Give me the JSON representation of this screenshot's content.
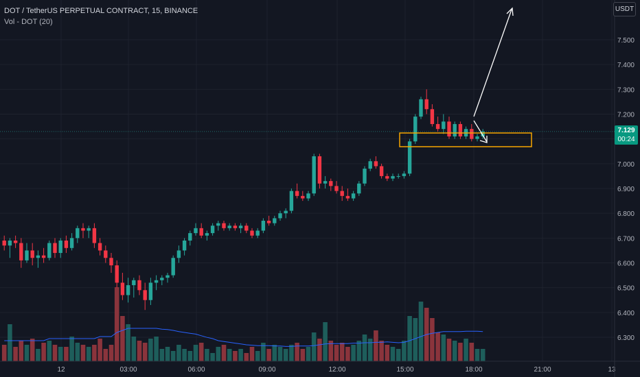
{
  "legend": {
    "title": "DOT / TetherUS PERPETUAL CONTRACT, 15, BINANCE",
    "volume_label": "Vol - DOT (20)"
  },
  "toolbar": {
    "currency": "USDT"
  },
  "last_price": {
    "value": "7.129",
    "countdown": "00:24",
    "color": "#089981"
  },
  "colors": {
    "up": "#26a69a",
    "down": "#f23645",
    "up_volume": "#1e5e5b",
    "down_volume": "#8a343c",
    "ma": "#2962ff",
    "annotation_box": "#f7a600",
    "arrow": "#ffffff"
  },
  "chart_data": {
    "type": "candlestick",
    "y_ticks": [
      "7.500",
      "7.400",
      "7.300",
      "7.200",
      "7.100",
      "7.000",
      "6.900",
      "6.800",
      "6.700",
      "6.600",
      "6.500",
      "6.400",
      "6.300"
    ],
    "x_ticks": [
      "12",
      "03:00",
      "06:00",
      "09:00",
      "12:00",
      "15:00",
      "18:00",
      "21:00",
      "13"
    ],
    "ylim": [
      6.22,
      7.62
    ],
    "candles": [
      [
        6.69,
        6.71,
        6.65,
        6.67
      ],
      [
        6.67,
        6.7,
        6.62,
        6.69
      ],
      [
        6.69,
        6.71,
        6.66,
        6.68
      ],
      [
        6.68,
        6.7,
        6.58,
        6.61
      ],
      [
        6.61,
        6.68,
        6.6,
        6.65
      ],
      [
        6.65,
        6.68,
        6.59,
        6.62
      ],
      [
        6.62,
        6.65,
        6.58,
        6.63
      ],
      [
        6.63,
        6.66,
        6.6,
        6.62
      ],
      [
        6.62,
        6.69,
        6.61,
        6.68
      ],
      [
        6.68,
        6.7,
        6.62,
        6.64
      ],
      [
        6.64,
        6.7,
        6.62,
        6.69
      ],
      [
        6.69,
        6.71,
        6.64,
        6.66
      ],
      [
        6.66,
        6.72,
        6.65,
        6.7
      ],
      [
        6.7,
        6.75,
        6.68,
        6.74
      ],
      [
        6.74,
        6.76,
        6.7,
        6.73
      ],
      [
        6.73,
        6.75,
        6.7,
        6.74
      ],
      [
        6.74,
        6.76,
        6.66,
        6.68
      ],
      [
        6.68,
        6.7,
        6.63,
        6.65
      ],
      [
        6.65,
        6.67,
        6.6,
        6.62
      ],
      [
        6.62,
        6.64,
        6.56,
        6.59
      ],
      [
        6.59,
        6.61,
        6.5,
        6.52
      ],
      [
        6.52,
        6.56,
        6.45,
        6.47
      ],
      [
        6.47,
        6.54,
        6.44,
        6.51
      ],
      [
        6.51,
        6.54,
        6.46,
        6.53
      ],
      [
        6.53,
        6.55,
        6.47,
        6.49
      ],
      [
        6.49,
        6.52,
        6.41,
        6.45
      ],
      [
        6.45,
        6.54,
        6.43,
        6.52
      ],
      [
        6.52,
        6.55,
        6.49,
        6.53
      ],
      [
        6.53,
        6.55,
        6.51,
        6.54
      ],
      [
        6.54,
        6.56,
        6.52,
        6.55
      ],
      [
        6.55,
        6.63,
        6.54,
        6.62
      ],
      [
        6.62,
        6.67,
        6.6,
        6.65
      ],
      [
        6.65,
        6.7,
        6.63,
        6.69
      ],
      [
        6.69,
        6.73,
        6.67,
        6.72
      ],
      [
        6.72,
        6.76,
        6.71,
        6.74
      ],
      [
        6.74,
        6.76,
        6.7,
        6.71
      ],
      [
        6.71,
        6.73,
        6.69,
        6.72
      ],
      [
        6.72,
        6.76,
        6.71,
        6.75
      ],
      [
        6.75,
        6.77,
        6.73,
        6.76
      ],
      [
        6.76,
        6.77,
        6.73,
        6.74
      ],
      [
        6.74,
        6.76,
        6.73,
        6.75
      ],
      [
        6.75,
        6.76,
        6.73,
        6.74
      ],
      [
        6.74,
        6.76,
        6.72,
        6.75
      ],
      [
        6.75,
        6.76,
        6.72,
        6.73
      ],
      [
        6.73,
        6.74,
        6.7,
        6.71
      ],
      [
        6.71,
        6.74,
        6.7,
        6.73
      ],
      [
        6.73,
        6.78,
        6.72,
        6.77
      ],
      [
        6.77,
        6.79,
        6.75,
        6.76
      ],
      [
        6.76,
        6.79,
        6.75,
        6.78
      ],
      [
        6.78,
        6.81,
        6.77,
        6.8
      ],
      [
        6.8,
        6.82,
        6.78,
        6.81
      ],
      [
        6.81,
        6.9,
        6.8,
        6.89
      ],
      [
        6.89,
        6.92,
        6.86,
        6.87
      ],
      [
        6.87,
        6.89,
        6.85,
        6.86
      ],
      [
        6.86,
        6.89,
        6.85,
        6.88
      ],
      [
        6.88,
        7.04,
        6.87,
        7.03
      ],
      [
        7.03,
        7.04,
        6.9,
        6.92
      ],
      [
        6.92,
        6.95,
        6.9,
        6.93
      ],
      [
        6.93,
        6.94,
        6.89,
        6.91
      ],
      [
        6.91,
        6.93,
        6.88,
        6.89
      ],
      [
        6.89,
        6.91,
        6.85,
        6.87
      ],
      [
        6.87,
        6.9,
        6.85,
        6.86
      ],
      [
        6.86,
        6.89,
        6.85,
        6.88
      ],
      [
        6.88,
        6.93,
        6.87,
        6.92
      ],
      [
        6.92,
        6.99,
        6.91,
        6.98
      ],
      [
        6.98,
        7.02,
        6.97,
        7.01
      ],
      [
        7.01,
        7.03,
        6.98,
        6.99
      ],
      [
        6.99,
        7.0,
        6.94,
        6.95
      ],
      [
        6.95,
        6.96,
        6.93,
        6.94
      ],
      [
        6.94,
        6.96,
        6.93,
        6.95
      ],
      [
        6.95,
        6.96,
        6.94,
        6.95
      ],
      [
        6.95,
        6.97,
        6.94,
        6.96
      ],
      [
        6.96,
        7.1,
        6.95,
        7.09
      ],
      [
        7.09,
        7.2,
        7.08,
        7.19
      ],
      [
        7.19,
        7.27,
        7.18,
        7.26
      ],
      [
        7.26,
        7.3,
        7.2,
        7.22
      ],
      [
        7.22,
        7.24,
        7.15,
        7.16
      ],
      [
        7.16,
        7.19,
        7.13,
        7.14
      ],
      [
        7.14,
        7.2,
        7.12,
        7.17
      ],
      [
        7.17,
        7.19,
        7.1,
        7.11
      ],
      [
        7.11,
        7.17,
        7.1,
        7.16
      ],
      [
        7.16,
        7.17,
        7.1,
        7.11
      ],
      [
        7.11,
        7.15,
        7.1,
        7.14
      ],
      [
        7.14,
        7.16,
        7.09,
        7.1
      ],
      [
        7.1,
        7.12,
        7.09,
        7.11
      ],
      [
        7.11,
        7.14,
        7.1,
        7.13
      ]
    ],
    "volumes": [
      0.4,
      0.9,
      0.35,
      0.5,
      0.4,
      0.55,
      0.3,
      0.45,
      0.5,
      0.4,
      0.35,
      0.35,
      0.6,
      0.45,
      0.4,
      0.35,
      0.4,
      0.55,
      0.3,
      0.4,
      1.8,
      1.1,
      0.9,
      0.6,
      0.5,
      0.45,
      0.55,
      0.6,
      0.3,
      0.35,
      0.25,
      0.4,
      0.3,
      0.25,
      0.4,
      0.45,
      0.3,
      0.2,
      0.35,
      0.4,
      0.3,
      0.25,
      0.3,
      0.2,
      0.35,
      0.25,
      0.45,
      0.3,
      0.4,
      0.35,
      0.3,
      0.4,
      0.45,
      0.3,
      0.35,
      0.7,
      0.55,
      0.95,
      0.5,
      0.4,
      0.45,
      0.35,
      0.4,
      0.5,
      0.65,
      0.55,
      0.75,
      0.5,
      0.4,
      0.35,
      0.3,
      0.5,
      1.1,
      1.05,
      1.45,
      1.3,
      1.05,
      0.7,
      0.65,
      0.55,
      0.5,
      0.45,
      0.55,
      0.45,
      0.3,
      0.3
    ],
    "ma": [
      0.5,
      0.5,
      0.5,
      0.5,
      0.5,
      0.5,
      0.5,
      0.5,
      0.55,
      0.55,
      0.55,
      0.55,
      0.55,
      0.55,
      0.55,
      0.55,
      0.55,
      0.6,
      0.6,
      0.6,
      0.7,
      0.75,
      0.8,
      0.8,
      0.8,
      0.8,
      0.8,
      0.8,
      0.78,
      0.77,
      0.75,
      0.72,
      0.7,
      0.68,
      0.66,
      0.62,
      0.58,
      0.55,
      0.5,
      0.48,
      0.46,
      0.44,
      0.42,
      0.4,
      0.39,
      0.38,
      0.38,
      0.38,
      0.37,
      0.37,
      0.36,
      0.36,
      0.37,
      0.37,
      0.37,
      0.38,
      0.4,
      0.42,
      0.43,
      0.43,
      0.43,
      0.43,
      0.44,
      0.44,
      0.45,
      0.45,
      0.46,
      0.46,
      0.47,
      0.46,
      0.45,
      0.46,
      0.5,
      0.55,
      0.6,
      0.65,
      0.68,
      0.7,
      0.72,
      0.72,
      0.72,
      0.72,
      0.73,
      0.73,
      0.73,
      0.72
    ]
  }
}
